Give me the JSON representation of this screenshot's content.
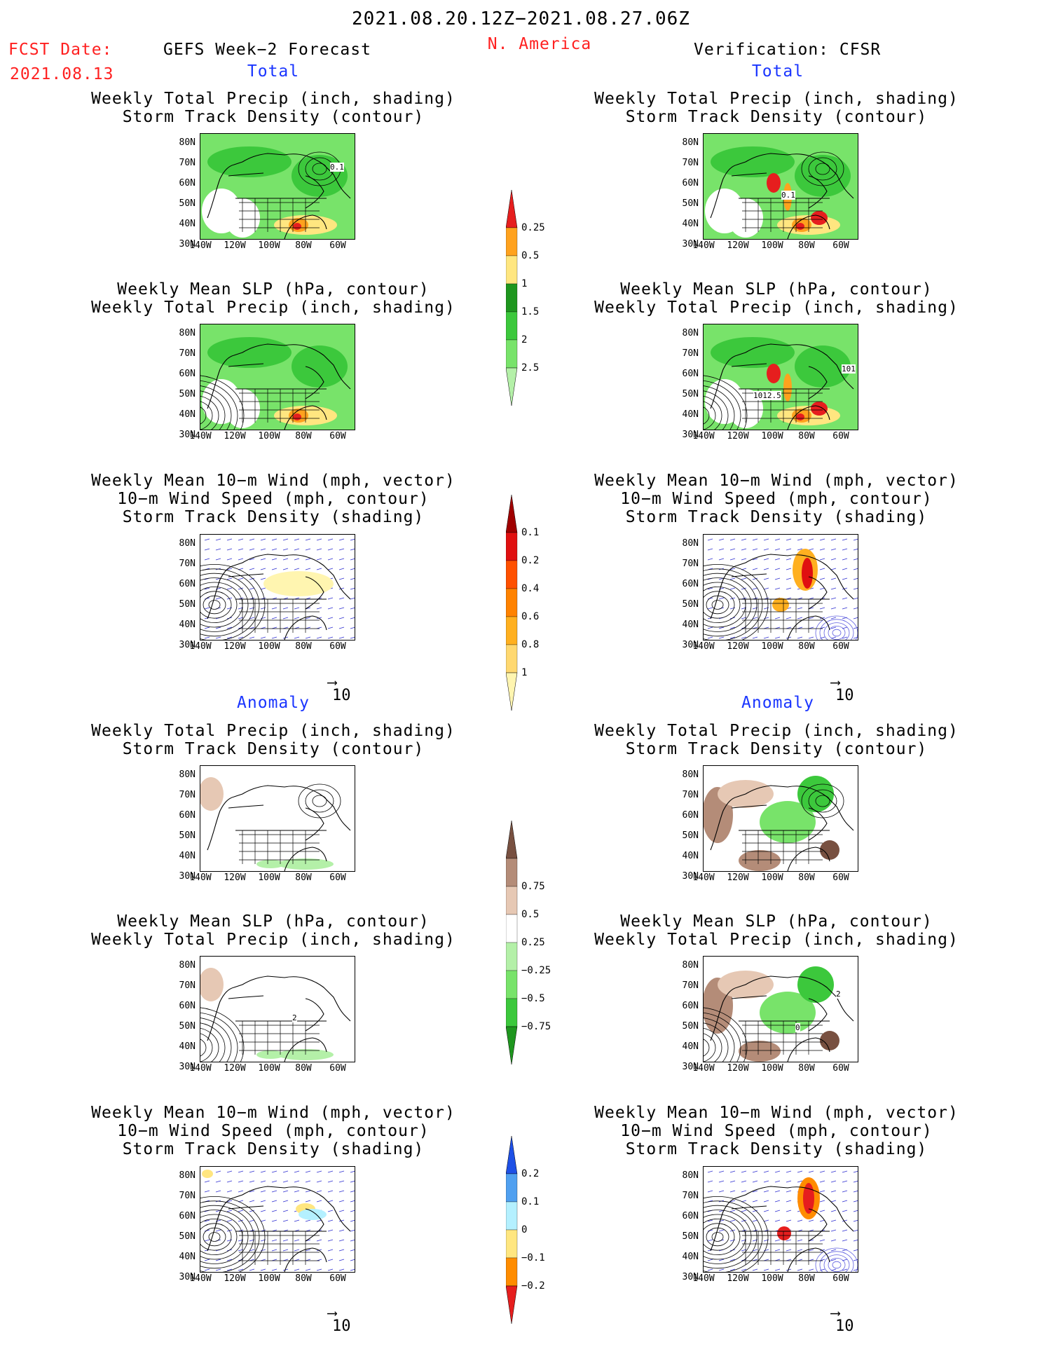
{
  "header": {
    "date_range": "2021.08.20.12Z−2021.08.27.06Z",
    "region": "N. America",
    "fcst_label": "FCST Date:",
    "fcst_date": "2021.08.13",
    "left_title": "GEFS Week−2 Forecast",
    "right_title": "Verification: CFSR"
  },
  "sections": {
    "total": "Total",
    "anomaly": "Anomaly"
  },
  "panel_titles": {
    "precip_track": [
      "Weekly Total Precip (inch, shading)",
      "Storm Track Density (contour)"
    ],
    "slp_precip": [
      "Weekly Mean SLP (hPa, contour)",
      "Weekly Total Precip (inch, shading)"
    ],
    "wind_track": [
      "Weekly Mean 10−m Wind (mph, vector)",
      "10−m Wind Speed (mph, contour)",
      "Storm Track Density (shading)"
    ]
  },
  "axes": {
    "lat_ticks": [
      "80N",
      "70N",
      "60N",
      "50N",
      "40N",
      "30N"
    ],
    "lon_ticks": [
      "140W",
      "120W",
      "100W",
      "80W",
      "60W"
    ]
  },
  "vector_scale_label": "10",
  "contour_labels": {
    "fcst_precip_track": "0.1",
    "ver_precip_track": "0.1",
    "ver_slp": [
      "1012.5",
      "101"
    ],
    "anom_slp": [
      "2",
      "0",
      "2"
    ]
  },
  "colorbars": {
    "precip_total": {
      "labels": [
        "0.25",
        "0.5",
        "1",
        "1.5",
        "2",
        "2.5"
      ],
      "colors": [
        "#b4f0a8",
        "#78e36a",
        "#3cc83c",
        "#1e961e",
        "#ffe680",
        "#ffa21e",
        "#e61e1e"
      ]
    },
    "track_total": {
      "labels": [
        "0.1",
        "0.2",
        "0.4",
        "0.6",
        "0.8",
        "1"
      ],
      "colors": [
        "#fff5b0",
        "#ffd870",
        "#ffb020",
        "#ff8200",
        "#ff5000",
        "#e01010",
        "#a00000"
      ]
    },
    "precip_anom": {
      "labels": [
        "0.75",
        "0.5",
        "0.25",
        "−0.25",
        "−0.5",
        "−0.75"
      ],
      "colors": [
        "#1e961e",
        "#3cc83c",
        "#78e36a",
        "#b4f0a8",
        "#ffffff",
        "#e6c8b4",
        "#b48c78",
        "#785040"
      ]
    },
    "track_anom": {
      "labels": [
        "0.2",
        "0.1",
        "0",
        "−0.1",
        "−0.2"
      ],
      "colors": [
        "#e61e1e",
        "#ff8c00",
        "#ffe680",
        "#b4f0ff",
        "#50a0f0",
        "#1e50e6"
      ]
    }
  }
}
